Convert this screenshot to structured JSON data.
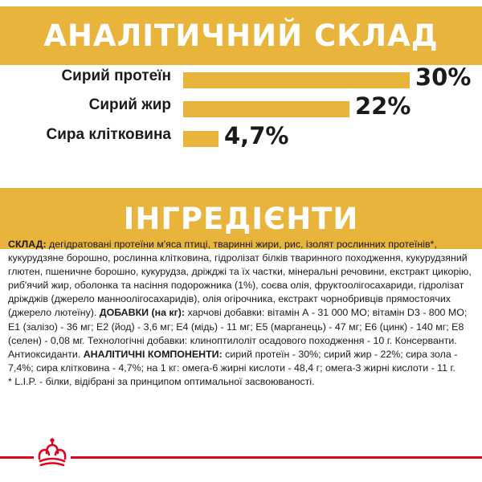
{
  "analysis": {
    "title": "АНАЛІТИЧНИЙ СКЛАД",
    "rows": [
      {
        "label": "Сирий протеїн",
        "value": "30%",
        "percent": 30
      },
      {
        "label": "Сирий жир",
        "value": "22%",
        "percent": 22
      },
      {
        "label": "Сира клітковина",
        "value": "4,7%",
        "percent": 4.7
      }
    ]
  },
  "ingredients": {
    "title": "ІНГРЕДІЄНТИ",
    "parts": [
      {
        "text": "СКЛАД:",
        "bold": true
      },
      {
        "text": " дегідратовані протеїни м'яса птиці, тваринні жири, рис, ізолят рослинних протеїнів*, кукурудзяне борошно, рослинна клітковина, гідролізат білків тваринного походження, кукурудзяний глютен, пшеничне борошно, кукурудза, дріжджі та їх частки, мінеральні речовини, екстракт цикорію, риб'ячий жир, оболонка та насіння подорожника (1%), соєва олія, фруктоолігосахариди, гідролізат дріжджів (джерело манноолігосахаридів), олія огірочника, екстракт чорнобривців прямостоячих (джерело лютеїну). ",
        "bold": false
      },
      {
        "text": "ДОБАВКИ (на кг):",
        "bold": true
      },
      {
        "text": " харчові добавки: вітамін А - 31 000 МО; вітамін D3 - 800 МО; E1 (залізо) - 36 мг; E2 (йод) - 3,6 мг; E4 (мідь) - 11 мг; E5 (марганець) - 47 мг; E6 (цинк) - 140 мг; E8 (селен) - 0,08 мг. Технологічні добавки: клиноптилоліт осадового походження - 10 г. Консерванти. Антиоксиданти. ",
        "bold": false
      },
      {
        "text": "АНАЛІТИЧНІ КОМПОНЕНТИ:",
        "bold": true
      },
      {
        "text": " сирий протеїн - 30%; сирий жир - 22%; сира зола - 7,4%; сира клітковина - 4,7%; на 1 кг: омега-6 жирні кислоти - 48,4 г; омега-3 жирні кислоти - 11 г.",
        "bold": false
      }
    ],
    "footnote": "* L.I.P. - білки, відібрані за принципом оптимальної засвоюваності."
  },
  "colors": {
    "accent": "#e8b43c",
    "brand_red": "#e2001a"
  },
  "brand_logo": "royal-canin-crown-icon"
}
